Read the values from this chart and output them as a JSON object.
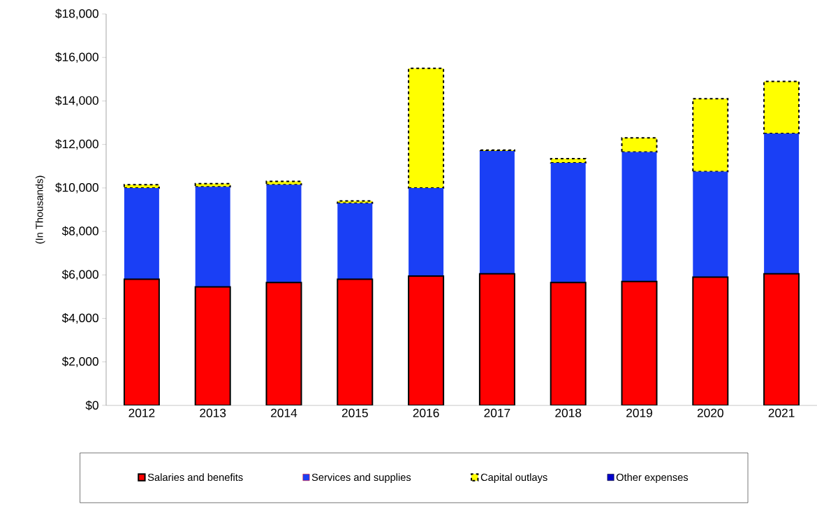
{
  "chart_data": {
    "type": "bar",
    "stacked": true,
    "ylabel": "(In Thousands)",
    "categories": [
      "2012",
      "2013",
      "2014",
      "2015",
      "2016",
      "2017",
      "2018",
      "2019",
      "2020",
      "2021"
    ],
    "series": [
      {
        "name": "Salaries and benefits",
        "color": "#ff0000",
        "line_style": "solid",
        "values": [
          5800,
          5450,
          5650,
          5800,
          5950,
          6050,
          5650,
          5700,
          5900,
          6050
        ]
      },
      {
        "name": "Services and supplies",
        "color": "#1a3ff5",
        "values": [
          4200,
          4600,
          4500,
          3500,
          4050,
          5650,
          5500,
          5950,
          4850,
          6450
        ]
      },
      {
        "name": "Capital outlays",
        "color": "#ffff00",
        "line_style": "dashed",
        "values": [
          150,
          150,
          150,
          100,
          5500,
          40,
          200,
          650,
          3350,
          2400
        ]
      },
      {
        "name": "Other expenses",
        "color": "#0000cc",
        "values": [
          null,
          null,
          null,
          null,
          null,
          null,
          null,
          null,
          null,
          null
        ]
      }
    ],
    "ylim": [
      0,
      18000
    ],
    "yticks": [
      {
        "value": 0,
        "label": "$0"
      },
      {
        "value": 2000,
        "label": "$2,000"
      },
      {
        "value": 4000,
        "label": "$4,000"
      },
      {
        "value": 6000,
        "label": "$6,000"
      },
      {
        "value": 8000,
        "label": "$8,000"
      },
      {
        "value": 10000,
        "label": "$10,000"
      },
      {
        "value": 12000,
        "label": "$12,000"
      },
      {
        "value": 14000,
        "label": "$14,000"
      },
      {
        "value": 16000,
        "label": "$16,000"
      },
      {
        "value": 18000,
        "label": "$18,000"
      }
    ],
    "legend": "bottom"
  }
}
